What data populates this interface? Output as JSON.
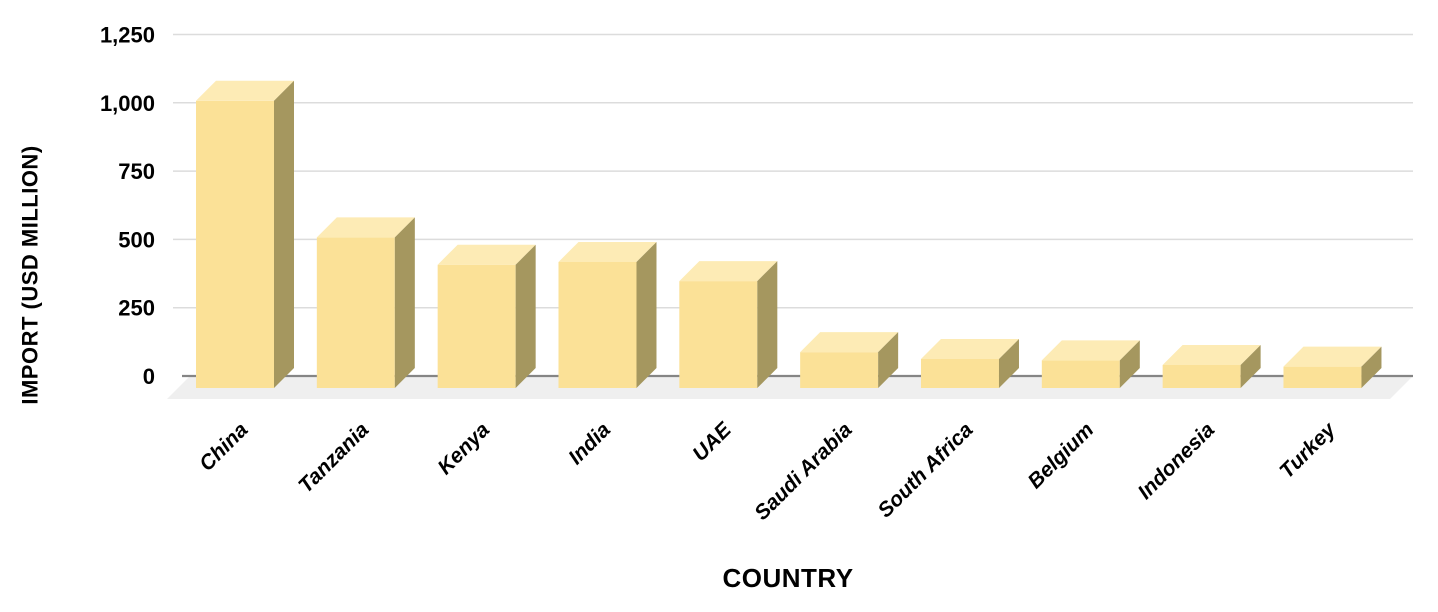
{
  "chart_data": {
    "type": "bar",
    "style": "3d-column",
    "title": "",
    "xlabel": "COUNTRY",
    "ylabel": "IMPORT (USD MILLION)",
    "categories": [
      "China",
      "Tanzania",
      "Kenya",
      "India",
      "UAE",
      "Saudi Arabia",
      "South Africa",
      "Belgium",
      "Indonesia",
      "Turkey"
    ],
    "values": [
      1000,
      500,
      400,
      410,
      340,
      80,
      55,
      50,
      33,
      27
    ],
    "ylim": [
      0,
      1250
    ],
    "ytick_interval": 250,
    "yticks": [
      "0",
      "250",
      "500",
      "750",
      "1,000",
      "1,250"
    ],
    "grid": true,
    "legend": false,
    "colors": {
      "bar_front": "#FBE197",
      "bar_top": "#FDEBB5",
      "bar_side": "#A5975F",
      "floor": "#EFEFEF",
      "gridline": "#DCDCDC",
      "zero_line": "#858585",
      "text": "#000000",
      "background": "#FFFFFF"
    }
  }
}
